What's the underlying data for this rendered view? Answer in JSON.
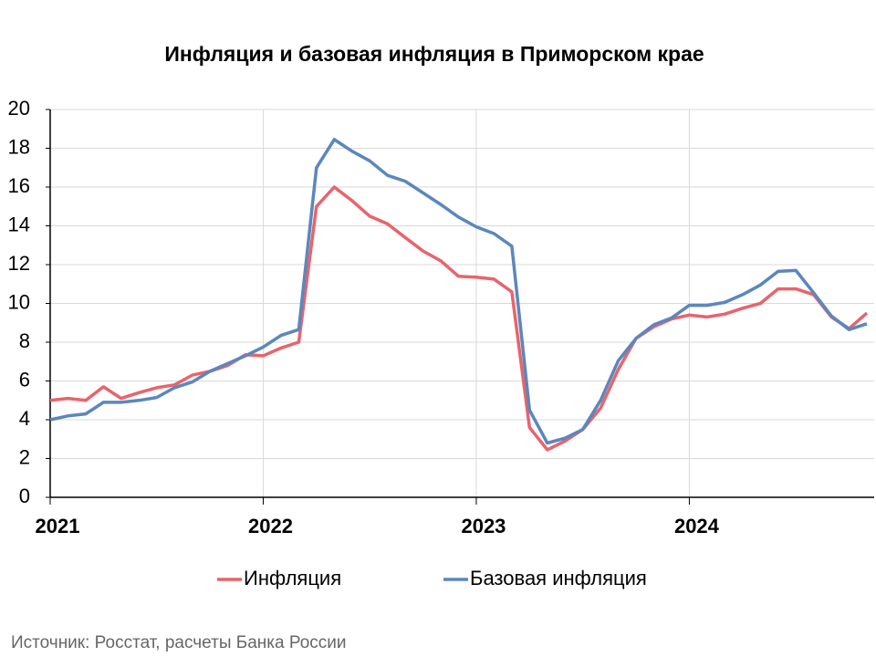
{
  "chart_data": {
    "type": "line",
    "title": "Инфляция и базовая инфляция в Приморском крае",
    "source": "Источник: Росстат, расчеты Банка России",
    "categories": [
      "2021",
      null,
      null,
      null,
      null,
      null,
      null,
      null,
      null,
      null,
      null,
      null,
      "2022",
      null,
      null,
      null,
      null,
      null,
      null,
      null,
      null,
      null,
      null,
      null,
      "2023",
      null,
      null,
      null,
      null,
      null,
      null,
      null,
      null,
      null,
      null,
      null,
      "2024",
      null,
      null,
      null,
      null,
      null,
      null,
      null,
      null,
      null,
      null
    ],
    "series": [
      {
        "name": "Инфляция",
        "color": "#e8646b",
        "values": [
          5.0,
          5.1,
          5.0,
          5.7,
          5.1,
          5.4,
          5.65,
          5.8,
          6.3,
          6.5,
          6.8,
          7.35,
          7.3,
          7.7,
          8.0,
          15.0,
          16.0,
          15.3,
          14.5,
          14.1,
          13.4,
          12.7,
          12.2,
          11.4,
          11.35,
          11.25,
          10.6,
          3.6,
          2.45,
          2.9,
          3.5,
          4.6,
          6.6,
          8.2,
          8.8,
          9.2,
          9.4,
          9.3,
          9.45,
          9.75,
          10.0,
          10.75,
          10.75,
          10.45,
          9.3,
          8.7,
          9.5
        ]
      },
      {
        "name": "Базовая инфляция",
        "color": "#5b87bd",
        "values": [
          4.0,
          4.2,
          4.3,
          4.9,
          4.9,
          5.0,
          5.15,
          5.65,
          5.95,
          6.5,
          6.9,
          7.3,
          7.75,
          8.35,
          8.65,
          17.0,
          18.45,
          17.85,
          17.35,
          16.6,
          16.3,
          15.7,
          15.1,
          14.45,
          13.95,
          13.6,
          12.95,
          4.5,
          2.8,
          3.05,
          3.5,
          5.0,
          7.05,
          8.2,
          8.9,
          9.25,
          9.9,
          9.9,
          10.05,
          10.45,
          10.95,
          11.65,
          11.7,
          10.55,
          9.35,
          8.65,
          8.95
        ]
      }
    ],
    "ylim": [
      0,
      20
    ],
    "yticks": [
      0,
      2,
      4,
      6,
      8,
      10,
      12,
      14,
      16,
      18,
      20
    ],
    "grid": true,
    "legend": "bottom"
  }
}
